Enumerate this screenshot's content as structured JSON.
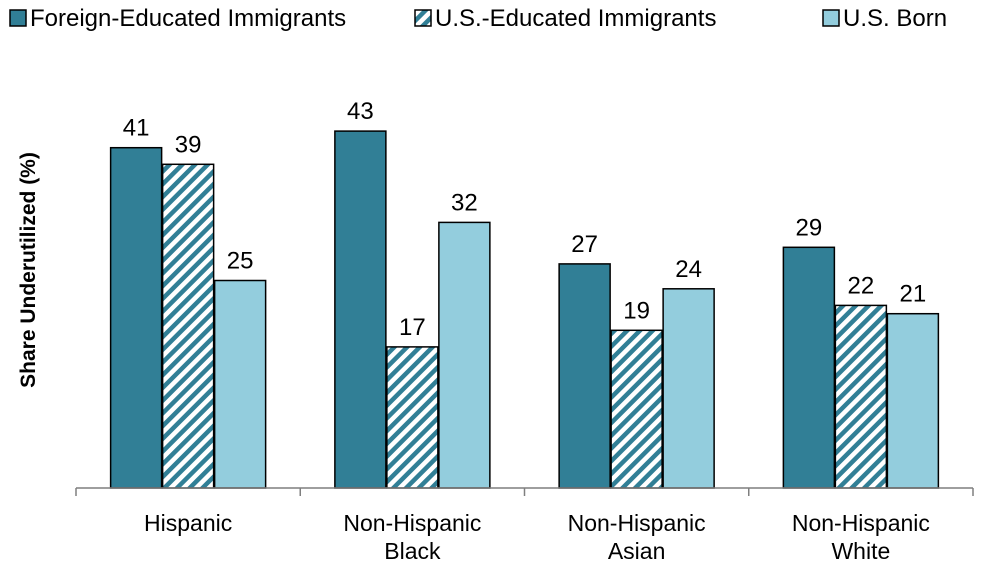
{
  "chart_data": {
    "type": "bar",
    "title": "",
    "xlabel": "",
    "ylabel": "Share Underutilized (%)",
    "ylim": [
      0,
      45
    ],
    "grid": false,
    "legend_position": "top",
    "categories": [
      [
        "Hispanic"
      ],
      [
        "Non-Hispanic",
        "Black"
      ],
      [
        "Non-Hispanic",
        "Asian"
      ],
      [
        "Non-Hispanic",
        "White"
      ]
    ],
    "series": [
      {
        "name": "Foreign-Educated Immigrants",
        "values": [
          41,
          43,
          27,
          29
        ],
        "color": "#317f96",
        "pattern": "solid"
      },
      {
        "name": "U.S.-Educated Immigrants",
        "values": [
          39,
          17,
          19,
          22
        ],
        "color": "#317f96",
        "pattern": "diagonal-hatch"
      },
      {
        "name": "U.S. Born",
        "values": [
          25,
          32,
          24,
          21
        ],
        "color": "#93cddd",
        "pattern": "solid"
      }
    ]
  }
}
